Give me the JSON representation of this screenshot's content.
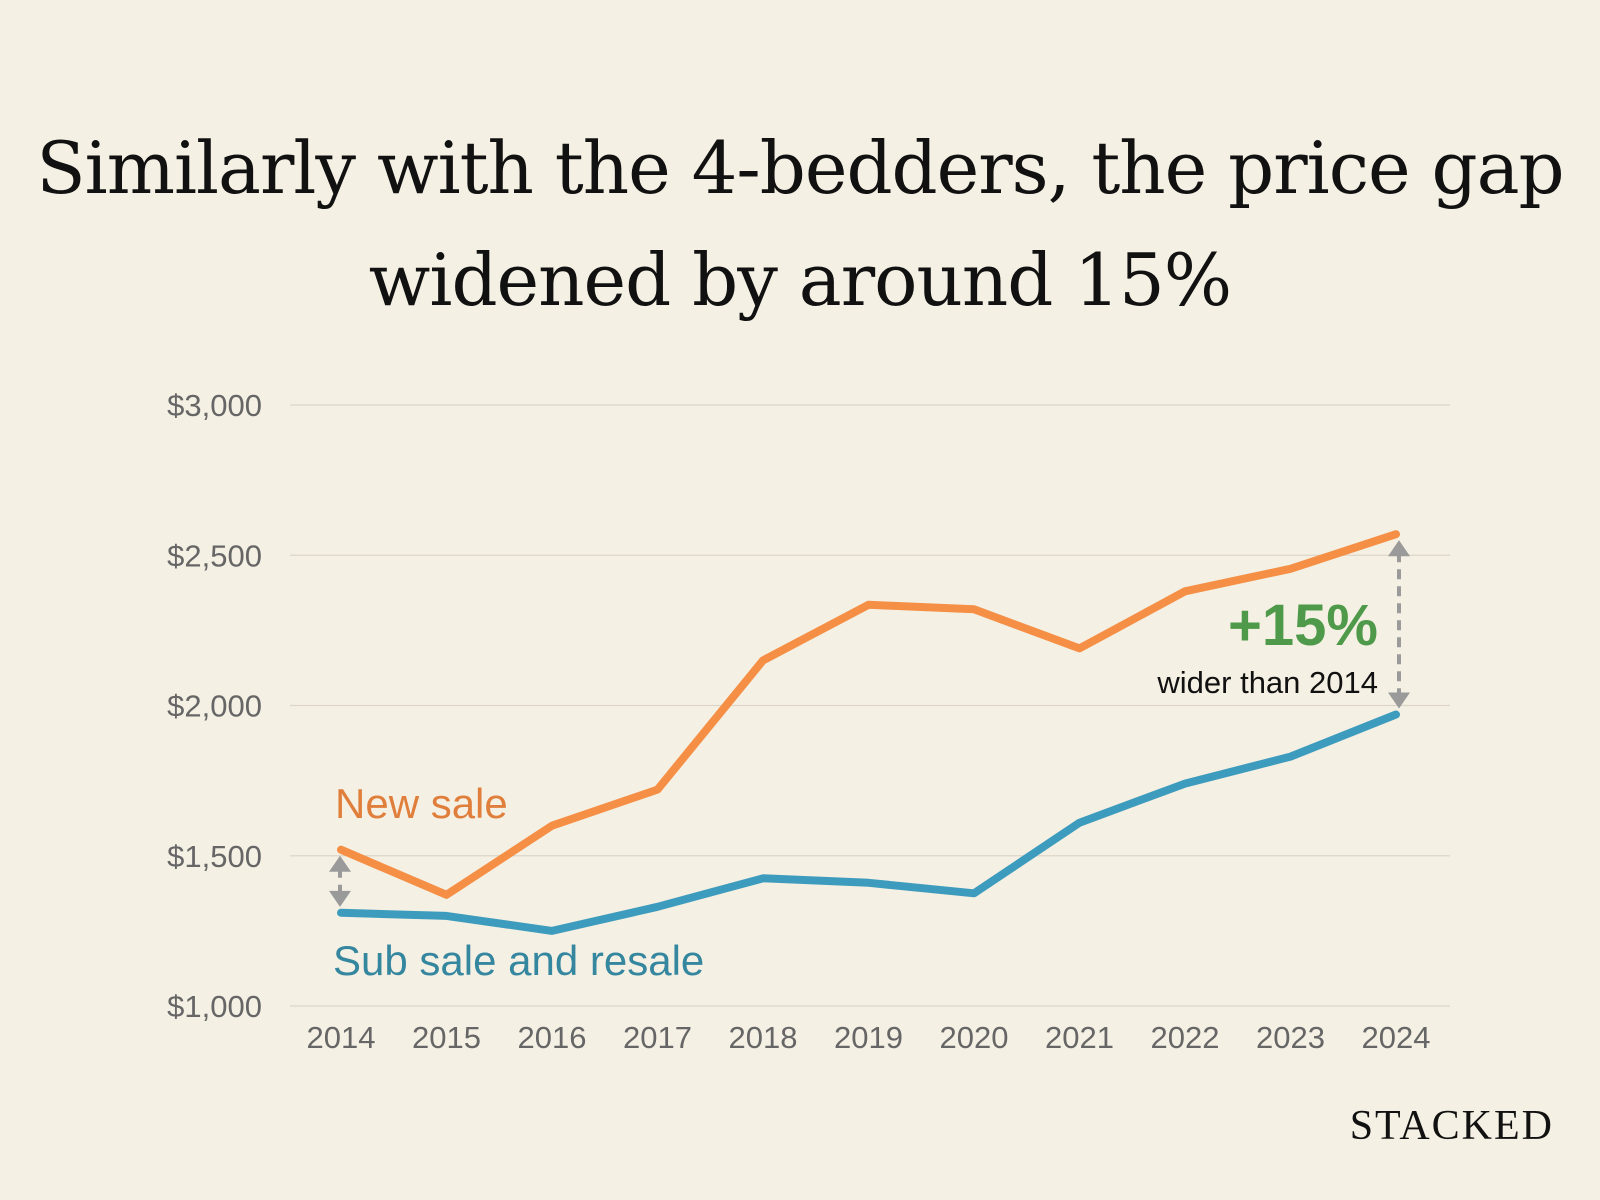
{
  "title": "Similarly with the 4-bedders, the price gap widened by around 15%",
  "brand": "STACKED",
  "chart_data": {
    "type": "line",
    "title": "Similarly with the 4-bedders, the price gap widened by around 15%",
    "xlabel": "",
    "ylabel": "",
    "categories": [
      "2014",
      "2015",
      "2016",
      "2017",
      "2018",
      "2019",
      "2020",
      "2021",
      "2022",
      "2023",
      "2024"
    ],
    "y_ticks": [
      1000,
      1500,
      2000,
      2500,
      3000
    ],
    "y_tick_labels": [
      "$1,000",
      "$1,500",
      "$2,000",
      "$2,500",
      "$3,000"
    ],
    "ylim": [
      1000,
      3000
    ],
    "grid": true,
    "series": [
      {
        "name": "New sale",
        "color": "#f58f45",
        "label_color": "#e07f3b",
        "values": [
          1520,
          1370,
          1600,
          1720,
          2150,
          2335,
          2320,
          2190,
          2380,
          2455,
          2570
        ]
      },
      {
        "name": "Sub sale and resale",
        "color": "#3d9cbd",
        "label_color": "#35869f",
        "values": [
          1310,
          1300,
          1250,
          1330,
          1425,
          1410,
          1375,
          1610,
          1740,
          1830,
          1970
        ]
      }
    ],
    "annotations": {
      "gap_value": "+15%",
      "gap_text": "wider than 2014",
      "gap_color": "#4f9a4a",
      "arrow_color": "#9a9a9a"
    }
  }
}
